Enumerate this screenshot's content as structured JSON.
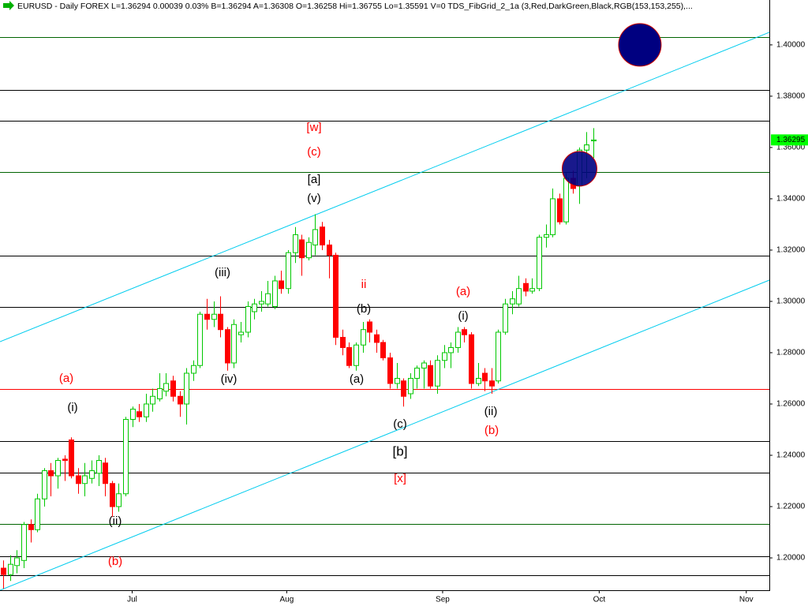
{
  "chart_data": {
    "type": "candlestick",
    "title": "EURUSD - Daily  FOREX  L=1.36294  0.00039  0.03%  B=1.36294  A=1.36308  O=1.36258  Hi=1.36755  Lo=1.35591  V=0  TDS_FibGrid_2_1a (3,Red,DarkGreen,Black,RGB(153,153,255),...",
    "open": [
      1.196,
      1.1935,
      1.197,
      1.199,
      1.213,
      1.211,
      1.223,
      1.234,
      1.232,
      1.2385,
      1.246,
      1.232,
      1.229,
      1.231,
      1.233,
      1.237,
      1.229,
      1.22,
      1.225,
      1.254,
      1.257,
      1.255,
      1.26,
      1.262,
      1.265,
      1.269,
      1.263,
      1.26,
      1.272,
      1.275,
      1.295,
      1.293,
      1.295,
      1.289,
      1.276,
      1.287,
      1.288,
      1.296,
      1.299,
      1.299,
      1.298,
      1.308,
      1.305,
      1.319,
      1.324,
      1.317,
      1.322,
      1.329,
      1.322,
      1.318,
      1.286,
      1.282,
      1.275,
      1.283,
      1.292,
      1.287,
      1.284,
      1.278,
      1.268,
      1.269,
      1.264,
      1.27,
      1.274,
      1.275,
      1.267,
      1.277,
      1.28,
      1.282,
      1.289,
      1.287,
      1.268,
      1.272,
      1.269,
      1.269,
      1.288,
      1.299,
      1.299,
      1.307,
      1.304,
      1.305,
      1.325,
      1.326,
      1.34,
      1.331,
      1.348,
      1.345,
      1.359,
      1.36258
    ],
    "high": [
      1.199,
      1.201,
      1.203,
      1.214,
      1.215,
      1.225,
      1.235,
      1.237,
      1.239,
      1.24,
      1.247,
      1.235,
      1.237,
      1.238,
      1.24,
      1.239,
      1.23,
      1.229,
      1.255,
      1.259,
      1.26,
      1.264,
      1.266,
      1.272,
      1.272,
      1.271,
      1.265,
      1.274,
      1.277,
      1.296,
      1.301,
      1.3,
      1.302,
      1.29,
      1.293,
      1.292,
      1.3,
      1.301,
      1.304,
      1.308,
      1.31,
      1.312,
      1.32,
      1.329,
      1.326,
      1.325,
      1.334,
      1.331,
      1.324,
      1.319,
      1.289,
      1.284,
      1.284,
      1.292,
      1.293,
      1.289,
      1.285,
      1.28,
      1.276,
      1.27,
      1.272,
      1.275,
      1.277,
      1.277,
      1.279,
      1.283,
      1.284,
      1.29,
      1.29,
      1.288,
      1.276,
      1.274,
      1.274,
      1.289,
      1.301,
      1.304,
      1.31,
      1.309,
      1.309,
      1.326,
      1.33,
      1.344,
      1.342,
      1.35,
      1.351,
      1.36,
      1.366,
      1.36755
    ],
    "low": [
      1.188,
      1.191,
      1.194,
      1.196,
      1.206,
      1.21,
      1.22,
      1.224,
      1.227,
      1.23,
      1.231,
      1.225,
      1.224,
      1.229,
      1.228,
      1.224,
      1.216,
      1.218,
      1.224,
      1.251,
      1.253,
      1.253,
      1.257,
      1.261,
      1.263,
      1.261,
      1.255,
      1.252,
      1.269,
      1.274,
      1.289,
      1.29,
      1.286,
      1.273,
      1.274,
      1.284,
      1.286,
      1.293,
      1.296,
      1.298,
      1.297,
      1.303,
      1.303,
      1.315,
      1.31,
      1.316,
      1.318,
      1.32,
      1.309,
      1.283,
      1.279,
      1.274,
      1.273,
      1.28,
      1.284,
      1.28,
      1.277,
      1.266,
      1.266,
      1.259,
      1.262,
      1.266,
      1.266,
      1.266,
      1.264,
      1.274,
      1.274,
      1.28,
      1.284,
      1.266,
      1.267,
      1.265,
      1.264,
      1.268,
      1.287,
      1.295,
      1.298,
      1.302,
      1.303,
      1.304,
      1.321,
      1.325,
      1.33,
      1.33,
      1.342,
      1.338,
      1.348,
      1.35591
    ],
    "close": [
      1.1935,
      1.1975,
      1.2,
      1.213,
      1.211,
      1.223,
      1.234,
      1.232,
      1.238,
      1.238,
      1.232,
      1.229,
      1.232,
      1.234,
      1.238,
      1.229,
      1.22,
      1.225,
      1.254,
      1.258,
      1.255,
      1.26,
      1.263,
      1.266,
      1.268,
      1.263,
      1.26,
      1.272,
      1.275,
      1.295,
      1.293,
      1.295,
      1.289,
      1.276,
      1.291,
      1.288,
      1.298,
      1.299,
      1.3,
      1.303,
      1.308,
      1.305,
      1.319,
      1.326,
      1.317,
      1.323,
      1.328,
      1.322,
      1.318,
      1.286,
      1.282,
      1.275,
      1.283,
      1.289,
      1.288,
      1.284,
      1.278,
      1.268,
      1.27,
      1.263,
      1.27,
      1.274,
      1.276,
      1.267,
      1.277,
      1.28,
      1.282,
      1.288,
      1.287,
      1.268,
      1.27,
      1.269,
      1.267,
      1.288,
      1.299,
      1.301,
      1.305,
      1.304,
      1.305,
      1.325,
      1.326,
      1.34,
      1.331,
      1.348,
      1.344,
      1.359,
      1.361,
      1.36294
    ],
    "up_color": "#00c800",
    "down_color": "#ff0000",
    "xlim": [
      -0.5,
      113
    ],
    "xticks": [
      {
        "value": 19,
        "label": "Jul"
      },
      {
        "value": 41.8,
        "label": "Aug"
      },
      {
        "value": 64.8,
        "label": "Sep"
      },
      {
        "value": 87.9,
        "label": "Oct"
      },
      {
        "value": 109.6,
        "label": "Nov"
      }
    ],
    "ylim": [
      1.1874,
      1.4175
    ],
    "yticks": [
      {
        "value": 1.2,
        "label": "1.20000"
      },
      {
        "value": 1.22,
        "label": "1.22000"
      },
      {
        "value": 1.24,
        "label": "1.24000"
      },
      {
        "value": 1.26,
        "label": "1.26000"
      },
      {
        "value": 1.28,
        "label": "1.28000"
      },
      {
        "value": 1.3,
        "label": "1.30000"
      },
      {
        "value": 1.32,
        "label": "1.32000"
      },
      {
        "value": 1.34,
        "label": "1.34000"
      },
      {
        "value": 1.36,
        "label": "1.36000"
      },
      {
        "value": 1.38,
        "label": "1.38000"
      },
      {
        "value": 1.4,
        "label": "1.40000"
      }
    ],
    "last_price": 1.36295,
    "last_price_color": "#00ff00",
    "levels": [
      1.4031,
      1.3825,
      1.3705,
      1.3505,
      1.3178,
      1.2978,
      1.2658,
      1.2455,
      1.2332,
      1.2132,
      1.2006,
      1.1932
    ],
    "level_colors": [
      "#006400",
      "#000000",
      "#000000",
      "#006400",
      "#000000",
      "#000000",
      "#ff0000",
      "#000000",
      "#000000",
      "#006400",
      "#000000",
      "#000000"
    ],
    "channels": [
      {
        "x": [
          -0.5,
          113
        ],
        "y": [
          1.2843,
          1.4049
        ]
      },
      {
        "x": [
          -0.5,
          113
        ],
        "y": [
          1.1874,
          1.3083
        ]
      }
    ],
    "channel_color": "#00ccee",
    "ellipses": [
      {
        "x": 93.9,
        "y": 1.4
      },
      {
        "x": 85,
        "y": 1.3517
      }
    ],
    "ellipse_color": "#000080",
    "annotations": [
      {
        "text": "[w]",
        "color": "#ff0000"
      },
      {
        "text": "(c)",
        "color": "#ff0000"
      },
      {
        "text": "[a]",
        "color": "#000000"
      },
      {
        "text": "(v)",
        "color": "#000000"
      },
      {
        "text": "(iii)",
        "color": "#000000"
      },
      {
        "text": "(iv)",
        "color": "#000000"
      },
      {
        "text": "ii",
        "color": "#ff0000"
      },
      {
        "text": "(b)",
        "color": "#000000"
      },
      {
        "text": "(a)",
        "color": "#000000"
      },
      {
        "text": "(c)",
        "color": "#000000"
      },
      {
        "text": "[b]",
        "color": "#000000"
      },
      {
        "text": "[x]",
        "color": "#ff0000"
      },
      {
        "text": "(a)",
        "color": "#ff0000"
      },
      {
        "text": "(i)",
        "color": "#000000"
      },
      {
        "text": "(ii)",
        "color": "#000000"
      },
      {
        "text": "(b)",
        "color": "#ff0000"
      },
      {
        "text": "(a)",
        "color": "#ff0000"
      },
      {
        "text": "(i)",
        "color": "#000000"
      },
      {
        "text": "(ii)",
        "color": "#000000"
      },
      {
        "text": "(b)",
        "color": "#ff0000"
      }
    ]
  }
}
